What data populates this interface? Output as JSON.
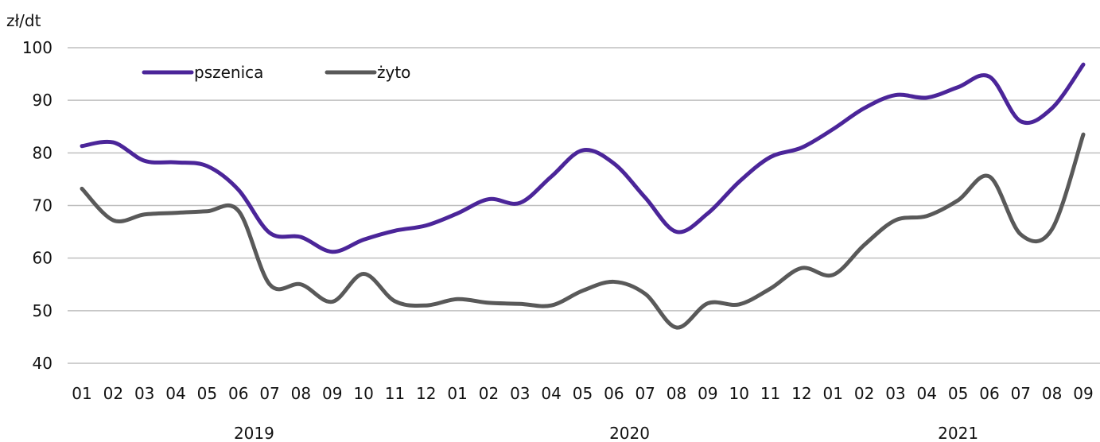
{
  "chart_data": {
    "type": "line",
    "ylabel": "zł/dt",
    "ylim": [
      40,
      100
    ],
    "yticks": [
      40,
      50,
      60,
      70,
      80,
      90,
      100
    ],
    "grid": true,
    "legend_position": "top-left",
    "categories": [
      "01",
      "02",
      "03",
      "04",
      "05",
      "06",
      "07",
      "08",
      "09",
      "10",
      "11",
      "12",
      "01",
      "02",
      "03",
      "04",
      "05",
      "06",
      "07",
      "08",
      "09",
      "10",
      "11",
      "12",
      "01",
      "02",
      "03",
      "04",
      "05",
      "06",
      "07",
      "08",
      "09"
    ],
    "year_labels": [
      {
        "label": "2019",
        "start": 0,
        "end": 11
      },
      {
        "label": "2020",
        "start": 12,
        "end": 23
      },
      {
        "label": "2021",
        "start": 24,
        "end": 32
      }
    ],
    "series": [
      {
        "name": "pszenica",
        "color": "#4b2599",
        "values": [
          81.3,
          82.0,
          78.5,
          78.2,
          77.5,
          73.0,
          64.8,
          64.0,
          61.2,
          63.5,
          65.2,
          66.2,
          68.5,
          71.2,
          70.5,
          75.5,
          80.5,
          78.0,
          71.5,
          65.0,
          68.5,
          74.5,
          79.2,
          81.0,
          84.5,
          88.5,
          91.0,
          90.5,
          92.5,
          94.5,
          86.0,
          88.5,
          96.8
        ]
      },
      {
        "name": "żyto",
        "color": "#595959",
        "values": [
          73.2,
          67.2,
          68.3,
          68.6,
          68.9,
          69.0,
          55.0,
          55.0,
          51.7,
          57.0,
          51.8,
          51.0,
          52.2,
          51.5,
          51.3,
          51.0,
          53.8,
          55.5,
          53.2,
          46.8,
          51.4,
          51.2,
          54.2,
          58.1,
          56.8,
          62.5,
          67.2,
          68.0,
          71.0,
          75.5,
          64.5,
          65.5,
          83.5
        ]
      }
    ]
  }
}
